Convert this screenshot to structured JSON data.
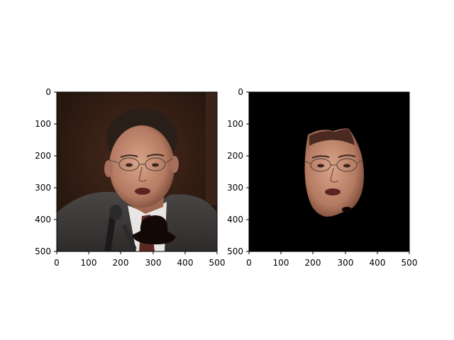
{
  "figure": {
    "panels": [
      {
        "name": "original-photo",
        "image": "portrait photo of a man with glasses, dark suit, microphone in foreground, dark blob overlay at lower right",
        "xticks": [
          "0",
          "100",
          "200",
          "300",
          "400",
          "500"
        ],
        "yticks": [
          "0",
          "100",
          "200",
          "300",
          "400",
          "500"
        ]
      },
      {
        "name": "masked-face-photo",
        "image": "same portrait with everything except the face region masked to black",
        "xticks": [
          "0",
          "100",
          "200",
          "300",
          "400",
          "500"
        ],
        "yticks": [
          "0",
          "100",
          "200",
          "300",
          "400",
          "500"
        ]
      }
    ]
  },
  "colors": {
    "axis": "#000000",
    "background": "#ffffff",
    "mask": "#000000"
  }
}
